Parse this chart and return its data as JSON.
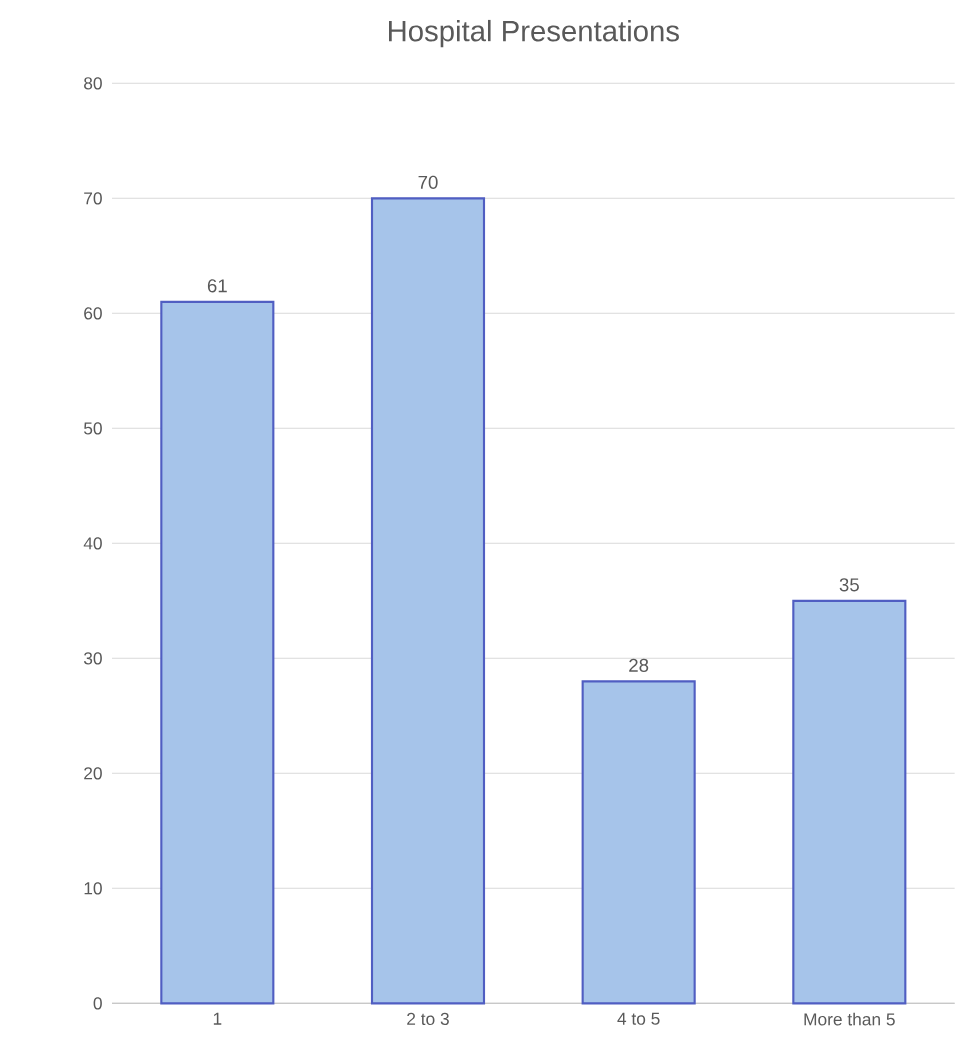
{
  "chart_data": {
    "type": "bar",
    "title": "Hospital Presentations",
    "categories": [
      "1",
      "2 to 3",
      "4 to 5",
      "More than 5"
    ],
    "values": [
      61,
      70,
      28,
      35
    ],
    "color": "#a6c4ea",
    "ylim": [
      0,
      80
    ],
    "yticks": [
      0,
      10,
      20,
      30,
      40,
      50,
      60,
      70,
      80
    ],
    "grid": "y",
    "data_labels": true
  }
}
